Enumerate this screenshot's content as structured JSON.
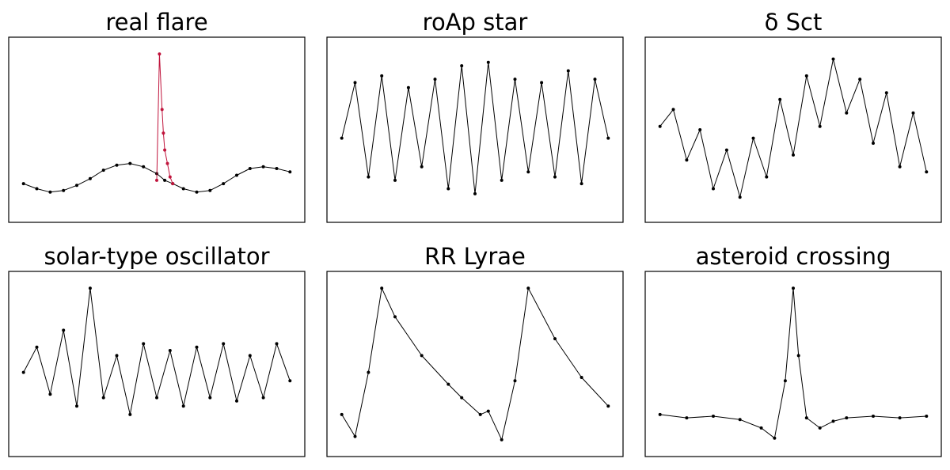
{
  "figure": {
    "line_color": "#000000",
    "highlight_color": "#c0143c",
    "background": "#ffffff"
  },
  "chart_data": [
    {
      "type": "line",
      "title": "real flare",
      "xlabel": "",
      "ylabel": "",
      "axes_ticks": false,
      "grid": false,
      "xlim": [
        0,
        1
      ],
      "ylim": [
        0,
        1
      ],
      "series": [
        {
          "color": "#000000",
          "x": [
            0.0,
            0.05,
            0.1,
            0.15,
            0.2,
            0.25,
            0.3,
            0.35,
            0.4,
            0.45,
            0.5,
            0.53,
            0.56,
            0.6,
            0.65,
            0.7,
            0.75,
            0.8,
            0.85,
            0.9,
            0.95,
            1.0
          ],
          "y": [
            0.18,
            0.15,
            0.13,
            0.14,
            0.17,
            0.21,
            0.26,
            0.29,
            0.3,
            0.28,
            0.24,
            0.2,
            0.18,
            0.15,
            0.13,
            0.14,
            0.18,
            0.23,
            0.27,
            0.28,
            0.27,
            0.25
          ]
        },
        {
          "color": "#c0143c",
          "x": [
            0.5,
            0.51,
            0.52,
            0.525,
            0.53,
            0.54,
            0.55,
            0.56
          ],
          "y": [
            0.2,
            0.95,
            0.62,
            0.48,
            0.38,
            0.3,
            0.22,
            0.18
          ]
        }
      ]
    },
    {
      "type": "line",
      "title": "roAp star",
      "xlabel": "",
      "ylabel": "",
      "axes_ticks": false,
      "grid": false,
      "xlim": [
        0,
        1
      ],
      "ylim": [
        0,
        1
      ],
      "series": [
        {
          "color": "#000000",
          "x": [
            0.0,
            0.05,
            0.1,
            0.15,
            0.2,
            0.25,
            0.3,
            0.35,
            0.4,
            0.45,
            0.5,
            0.55,
            0.6,
            0.65,
            0.7,
            0.75,
            0.8,
            0.85,
            0.9,
            0.95,
            1.0
          ],
          "y": [
            0.45,
            0.78,
            0.22,
            0.82,
            0.2,
            0.75,
            0.28,
            0.8,
            0.15,
            0.88,
            0.12,
            0.9,
            0.2,
            0.8,
            0.25,
            0.78,
            0.22,
            0.85,
            0.18,
            0.8,
            0.45
          ]
        }
      ]
    },
    {
      "type": "line",
      "title": "δ Sct",
      "xlabel": "",
      "ylabel": "",
      "axes_ticks": false,
      "grid": false,
      "xlim": [
        0,
        1
      ],
      "ylim": [
        0,
        1
      ],
      "series": [
        {
          "color": "#000000",
          "x": [
            0.0,
            0.05,
            0.1,
            0.15,
            0.2,
            0.25,
            0.3,
            0.35,
            0.4,
            0.45,
            0.5,
            0.55,
            0.6,
            0.65,
            0.7,
            0.75,
            0.8,
            0.85,
            0.9,
            0.95,
            1.0
          ],
          "y": [
            0.52,
            0.62,
            0.32,
            0.5,
            0.15,
            0.38,
            0.1,
            0.45,
            0.22,
            0.68,
            0.35,
            0.82,
            0.52,
            0.92,
            0.6,
            0.8,
            0.42,
            0.72,
            0.28,
            0.6,
            0.25
          ]
        }
      ]
    },
    {
      "type": "line",
      "title": "solar-type oscillator",
      "xlabel": "",
      "ylabel": "",
      "axes_ticks": false,
      "grid": false,
      "xlim": [
        0,
        1
      ],
      "ylim": [
        0,
        1
      ],
      "series": [
        {
          "color": "#000000",
          "x": [
            0.0,
            0.05,
            0.1,
            0.15,
            0.2,
            0.25,
            0.3,
            0.35,
            0.4,
            0.45,
            0.5,
            0.55,
            0.6,
            0.65,
            0.7,
            0.75,
            0.8,
            0.85,
            0.9,
            0.95,
            1.0
          ],
          "y": [
            0.45,
            0.6,
            0.32,
            0.7,
            0.25,
            0.95,
            0.3,
            0.55,
            0.2,
            0.62,
            0.3,
            0.58,
            0.25,
            0.6,
            0.3,
            0.62,
            0.28,
            0.55,
            0.3,
            0.62,
            0.4
          ]
        }
      ]
    },
    {
      "type": "line",
      "title": "RR Lyrae",
      "xlabel": "",
      "ylabel": "",
      "axes_ticks": false,
      "grid": false,
      "xlim": [
        0,
        1
      ],
      "ylim": [
        0,
        1
      ],
      "series": [
        {
          "color": "#000000",
          "x": [
            0.0,
            0.05,
            0.1,
            0.15,
            0.2,
            0.3,
            0.4,
            0.45,
            0.52,
            0.55,
            0.6,
            0.65,
            0.7,
            0.8,
            0.9,
            1.0
          ],
          "y": [
            0.2,
            0.07,
            0.45,
            0.95,
            0.78,
            0.55,
            0.38,
            0.3,
            0.2,
            0.22,
            0.05,
            0.4,
            0.95,
            0.65,
            0.42,
            0.25
          ]
        }
      ]
    },
    {
      "type": "line",
      "title": "asteroid crossing",
      "xlabel": "",
      "ylabel": "",
      "axes_ticks": false,
      "grid": false,
      "xlim": [
        0,
        1
      ],
      "ylim": [
        0,
        1
      ],
      "series": [
        {
          "color": "#000000",
          "x": [
            0.0,
            0.1,
            0.2,
            0.3,
            0.38,
            0.43,
            0.47,
            0.5,
            0.52,
            0.55,
            0.6,
            0.65,
            0.7,
            0.8,
            0.9,
            1.0
          ],
          "y": [
            0.2,
            0.18,
            0.19,
            0.17,
            0.12,
            0.06,
            0.4,
            0.95,
            0.55,
            0.18,
            0.12,
            0.16,
            0.18,
            0.19,
            0.18,
            0.19
          ]
        }
      ]
    }
  ]
}
